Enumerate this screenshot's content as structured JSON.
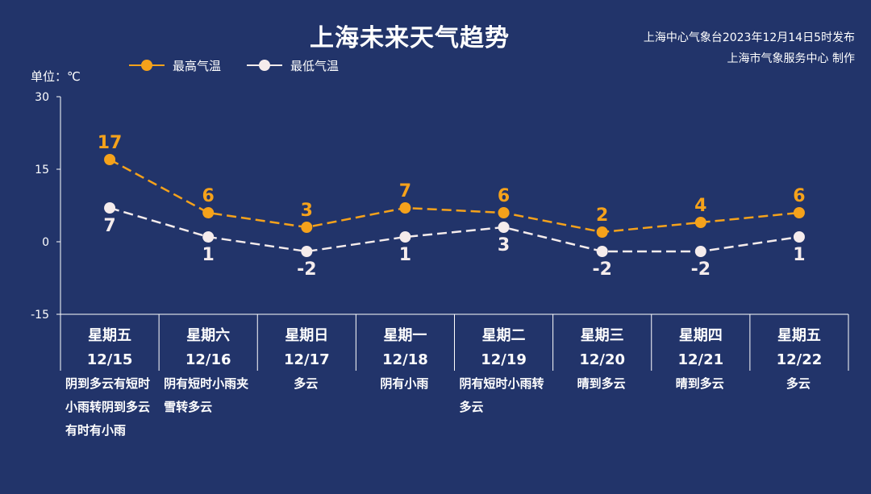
{
  "title": "上海未来天气趋势",
  "publisher": {
    "line1": "上海中心气象台2023年12月14日5时发布",
    "line2": "上海市气象服务中心 制作"
  },
  "unit_label": "单位：℃",
  "colors": {
    "background": "#22346a",
    "high": "#f5a21b",
    "low": "#f5ecec",
    "axis": "#ffffff"
  },
  "legend": [
    {
      "name": "最高气温",
      "color": "#f5a21b"
    },
    {
      "name": "最低气温",
      "color": "#f5ecec"
    }
  ],
  "chart_data": {
    "type": "line",
    "ylim": [
      -15,
      30
    ],
    "yticks": [
      -15,
      0,
      15,
      30
    ],
    "grid": false,
    "legend_position": "top-left",
    "categories": [
      "星期五",
      "星期六",
      "星期日",
      "星期一",
      "星期二",
      "星期三",
      "星期四",
      "星期五"
    ],
    "dates": [
      "12/15",
      "12/16",
      "12/17",
      "12/18",
      "12/19",
      "12/20",
      "12/21",
      "12/22"
    ],
    "weather": [
      "阴到多云有短时小雨转阴到多云有时有小雨",
      "阴有短时小雨夹雪转多云",
      "多云",
      "阴有小雨",
      "阴有短时小雨转多云",
      "晴到多云",
      "晴到多云",
      "多云"
    ],
    "series": [
      {
        "name": "最高气温",
        "values": [
          17,
          6,
          3,
          7,
          6,
          2,
          4,
          6
        ]
      },
      {
        "name": "最低气温",
        "values": [
          7,
          1,
          -2,
          1,
          3,
          -2,
          -2,
          1
        ]
      }
    ]
  }
}
